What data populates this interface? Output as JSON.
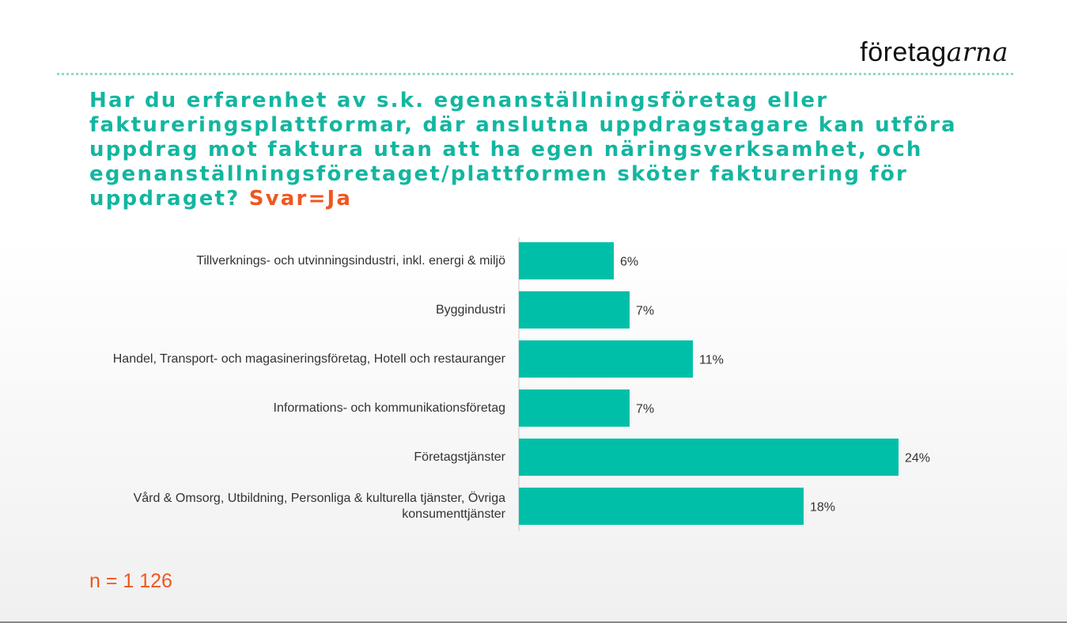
{
  "logo": {
    "part_regular": "företag",
    "part_italic": "arna"
  },
  "question": {
    "text": "Har du erfarenhet av s.k. egenanställningsföretag eller faktureringsplattformar, där anslutna uppdragstagare kan utföra uppdrag mot faktura utan att ha egen näringsverksamhet, och egenanställningsföretaget/plattformen sköter fakturering för uppdraget?",
    "answer": "Svar=Ja"
  },
  "sample_note": "n = 1 126",
  "colors": {
    "bar": "#00bfa8",
    "title": "#13b6a0",
    "accent": "#f0561f",
    "axis": "#c8c8c8"
  },
  "chart_data": {
    "type": "bar",
    "orientation": "horizontal",
    "categories": [
      "Tillverknings- och utvinningsindustri, inkl. energi & miljö",
      "Byggindustri",
      "Handel, Transport- och magasineringsföretag, Hotell och restauranger",
      "Informations- och kommunikationsföretag",
      "Företagstjänster",
      "Vård & Omsorg, Utbildning, Personliga & kulturella tjänster, Övriga konsumenttjänster"
    ],
    "values": [
      6,
      7,
      11,
      7,
      24,
      18
    ],
    "value_labels": [
      "6%",
      "7%",
      "11%",
      "7%",
      "24%",
      "18%"
    ],
    "unit": "%",
    "xlim": [
      0,
      30
    ],
    "grid": false,
    "legend": "none"
  }
}
